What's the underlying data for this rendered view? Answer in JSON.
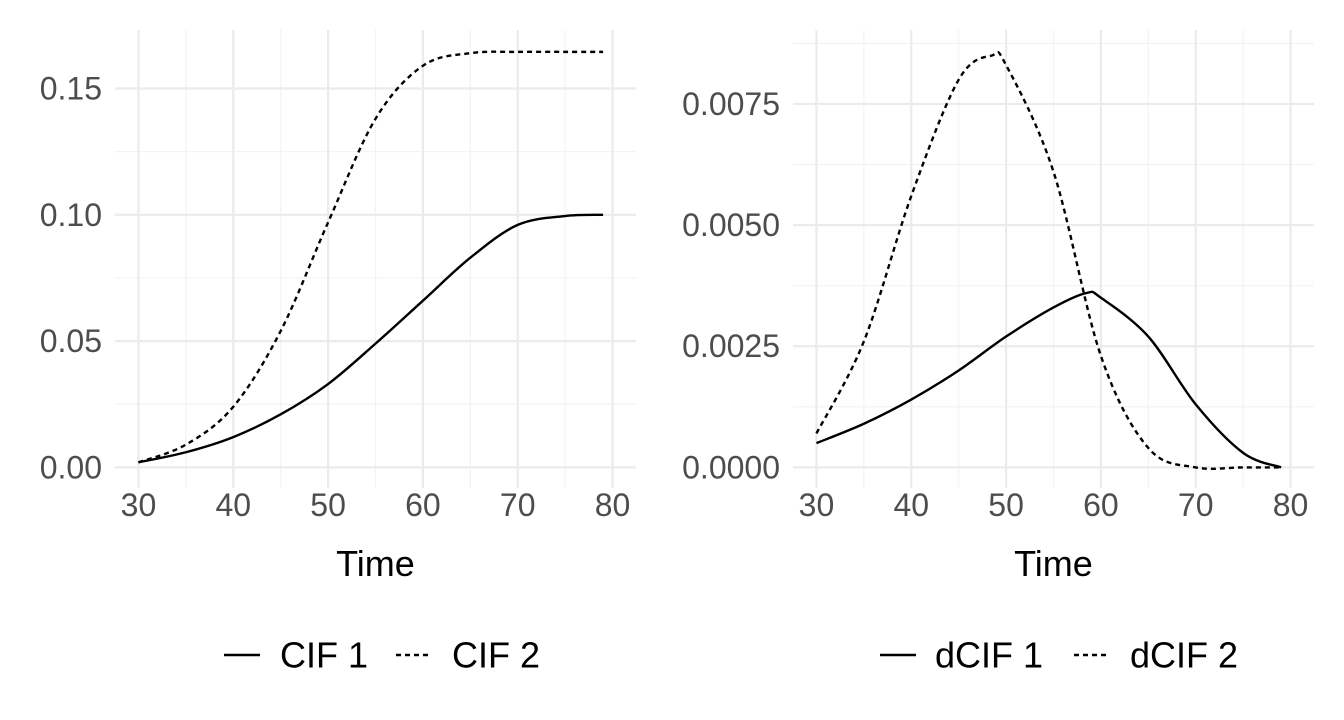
{
  "chart_data": [
    {
      "type": "line",
      "xlabel": "Time",
      "ylabel": "",
      "xlim": [
        30,
        80
      ],
      "ylim": [
        0,
        0.165
      ],
      "x_ticks": [
        30,
        40,
        50,
        60,
        70,
        80
      ],
      "x_tick_labels": [
        "30",
        "40",
        "50",
        "60",
        "70",
        "80"
      ],
      "y_ticks": [
        0,
        0.05,
        0.1,
        0.15
      ],
      "y_tick_labels": [
        "0.00",
        "0.05",
        "0.10",
        "0.15"
      ],
      "grid": true,
      "legend_position": "bottom",
      "series": [
        {
          "name": "CIF 1",
          "line_style": "solid",
          "x": [
            30,
            35,
            40,
            45,
            50,
            55,
            60,
            65,
            70,
            75,
            79
          ],
          "y": [
            0.002,
            0.006,
            0.012,
            0.021,
            0.033,
            0.049,
            0.066,
            0.083,
            0.096,
            0.0995,
            0.1
          ]
        },
        {
          "name": "CIF 2",
          "line_style": "dashed",
          "x": [
            30,
            35,
            40,
            45,
            50,
            55,
            60,
            65,
            70,
            75,
            79
          ],
          "y": [
            0.002,
            0.009,
            0.024,
            0.054,
            0.097,
            0.138,
            0.159,
            0.164,
            0.1645,
            0.1645,
            0.1645
          ]
        }
      ]
    },
    {
      "type": "line",
      "xlabel": "Time",
      "ylabel": "",
      "xlim": [
        30,
        80
      ],
      "ylim": [
        0,
        0.0086
      ],
      "x_ticks": [
        30,
        40,
        50,
        60,
        70,
        80
      ],
      "x_tick_labels": [
        "30",
        "40",
        "50",
        "60",
        "70",
        "80"
      ],
      "y_ticks": [
        0,
        0.0025,
        0.005,
        0.0075
      ],
      "y_tick_labels": [
        "0.0000",
        "0.0025",
        "0.0050",
        "0.0075"
      ],
      "grid": true,
      "legend_position": "bottom",
      "series": [
        {
          "name": "dCIF 1",
          "line_style": "solid",
          "x": [
            30,
            35,
            40,
            45,
            50,
            55,
            58.5,
            60,
            65,
            70,
            75,
            79
          ],
          "y": [
            0.0005,
            0.0009,
            0.0014,
            0.002,
            0.0027,
            0.0033,
            0.0036,
            0.0035,
            0.0027,
            0.0013,
            0.0003,
            0.0
          ]
        },
        {
          "name": "dCIF 2",
          "line_style": "dashed",
          "x": [
            30,
            35,
            40,
            45,
            48.5,
            50,
            55,
            60,
            65,
            70,
            75,
            79
          ],
          "y": [
            0.0007,
            0.0026,
            0.0056,
            0.008,
            0.0085,
            0.0083,
            0.0061,
            0.0023,
            0.0004,
            0.0,
            0.0,
            0.0
          ]
        }
      ]
    }
  ]
}
